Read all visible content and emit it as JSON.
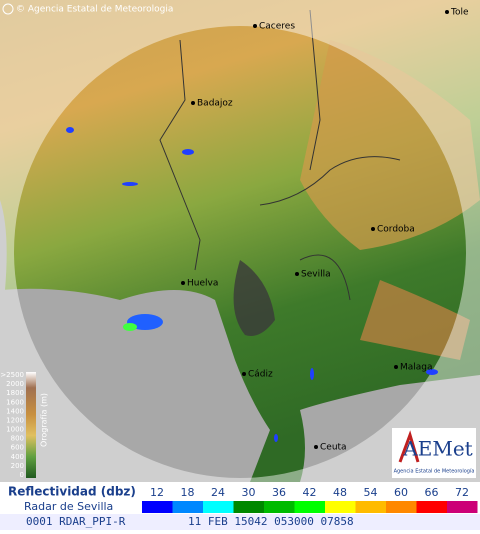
{
  "header": {
    "copyright": "© Agencia Estatal de Meteorologia"
  },
  "cities": [
    {
      "label": "Caceres"
    },
    {
      "label": "Tole"
    },
    {
      "label": "Badajoz"
    },
    {
      "label": "Cordoba"
    },
    {
      "label": "Sevilla"
    },
    {
      "label": "Huelva"
    },
    {
      "label": "Cádiz"
    },
    {
      "label": "Malaga"
    },
    {
      "label": "Ceuta"
    }
  ],
  "orography": {
    "title": "Orografía (m)",
    "levels": [
      ">2500",
      "2000",
      "1800",
      "1600",
      "1400",
      "1200",
      "1000",
      "800",
      "600",
      "400",
      "200",
      "0"
    ]
  },
  "logo": {
    "name": "AEMet",
    "subtitle": "Agencia Estatal de Meteorología"
  },
  "legend": {
    "title": "Reflectividad (dbz)",
    "subtitle": "Radar de Sevilla",
    "scale": [
      {
        "value": 12,
        "color": "#0000ff"
      },
      {
        "value": 18,
        "color": "#0088ff"
      },
      {
        "value": 24,
        "color": "#00ffff"
      },
      {
        "value": 30,
        "color": "#008800"
      },
      {
        "value": 36,
        "color": "#00bb00"
      },
      {
        "value": 42,
        "color": "#00ff00"
      },
      {
        "value": 48,
        "color": "#ffff00"
      },
      {
        "value": 54,
        "color": "#ffbb00"
      },
      {
        "value": 60,
        "color": "#ff8800"
      },
      {
        "value": 66,
        "color": "#ff0000"
      },
      {
        "value": 72,
        "color": "#cc0077"
      }
    ]
  },
  "footer": {
    "product": "0001 RDAR_PPI-R",
    "timestamp": "11 FEB 15042 053000 07858"
  }
}
